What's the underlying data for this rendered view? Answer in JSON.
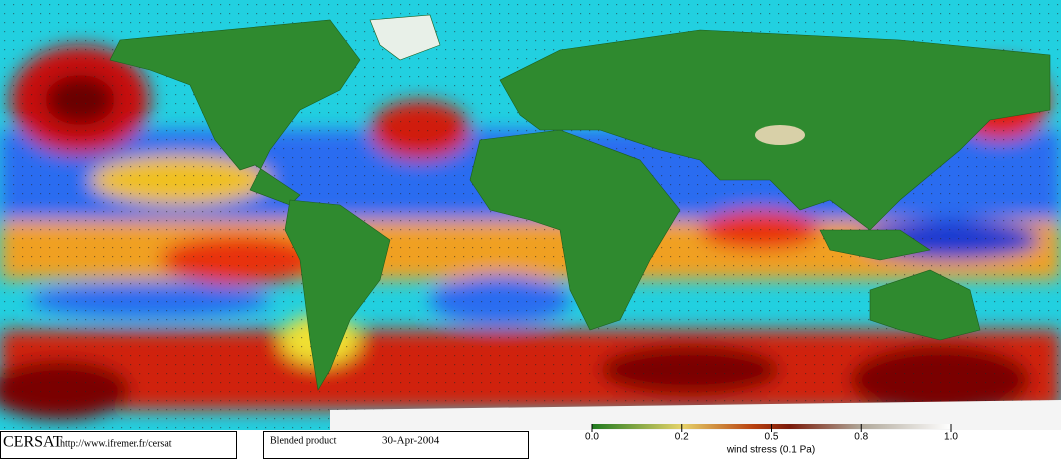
{
  "credits": {
    "logo": "CERSAT",
    "url": "http://www.ifremer.fr/cersat"
  },
  "product": {
    "name": "Blended product",
    "date": "30-Apr-2004"
  },
  "colorbar": {
    "ticks": [
      {
        "value": 0,
        "label": "0.0"
      },
      0.2,
      0.5,
      0.8,
      {
        "value": 1,
        "label": "1.0"
      }
    ],
    "label": "wind stress (0.1 Pa)"
  }
}
